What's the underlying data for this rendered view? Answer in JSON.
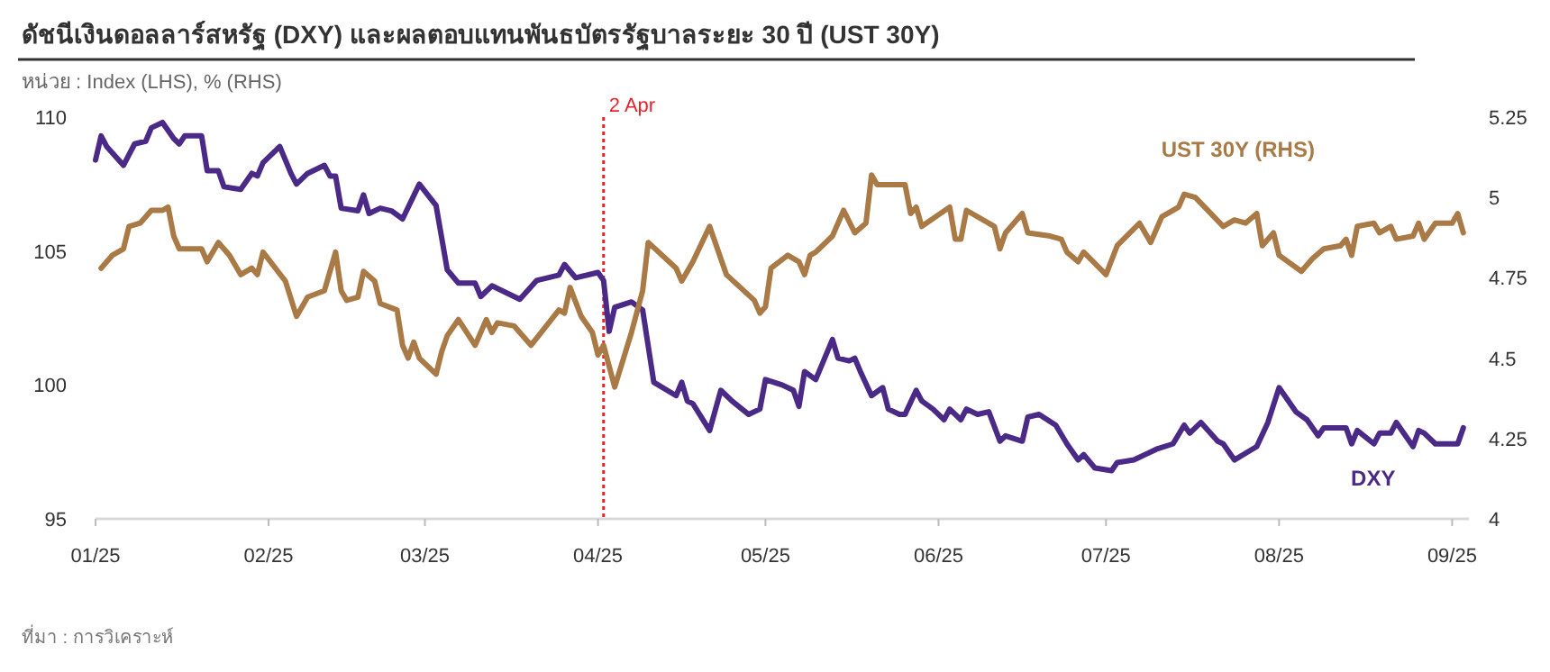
{
  "chart_data": {
    "type": "line",
    "title": "ดัชนีเงินดอลลาร์สหรัฐ (DXY) และผลตอบแทนพันธบัตรรัฐบาลระยะ  30 ปี (UST 30Y)",
    "subtitle": "หน่วย : Index (LHS), % (RHS)",
    "annotations": [
      "ที่มา : การวิเคราะห์"
    ],
    "xlim": [
      "2025-01-01",
      "2025-09-04"
    ],
    "xticks": [
      {
        "value": "2025-01-01",
        "label": "01/25"
      },
      {
        "value": "2025-02-01",
        "label": "02/25"
      },
      {
        "value": "2025-03-01",
        "label": "03/25"
      },
      {
        "value": "2025-04-01",
        "label": "04/25"
      },
      {
        "value": "2025-05-01",
        "label": "05/25"
      },
      {
        "value": "2025-06-01",
        "label": "06/25"
      },
      {
        "value": "2025-07-01",
        "label": "07/25"
      },
      {
        "value": "2025-08-01",
        "label": "08/25"
      },
      {
        "value": "2025-09-01",
        "label": "09/25"
      }
    ],
    "ylim": [
      95,
      110
    ],
    "yticks": [
      95,
      100,
      105,
      110
    ],
    "y2lim": [
      4,
      5.25
    ],
    "y2ticks": [
      4,
      4.25,
      4.5,
      4.75,
      5,
      5.25
    ],
    "grid": false,
    "legend": false,
    "line_style": "solid",
    "marker": "none",
    "ref_lines": [
      {
        "axis": "x",
        "value": "2025-04-02",
        "label": "2 Apr",
        "color": "#e8242c",
        "line_style": "dotted"
      }
    ],
    "series": [
      {
        "name": "DXY",
        "color": "#4a2a86",
        "x": [
          "2025-01-01",
          "2025-01-02",
          "2025-01-03",
          "2025-01-06",
          "2025-01-08",
          "2025-01-10",
          "2025-01-11",
          "2025-01-13",
          "2025-01-15",
          "2025-01-16",
          "2025-01-17",
          "2025-01-20",
          "2025-01-21",
          "2025-01-23",
          "2025-01-24",
          "2025-01-27",
          "2025-01-29",
          "2025-01-30",
          "2025-01-31",
          "2025-02-03",
          "2025-02-05",
          "2025-02-06",
          "2025-02-08",
          "2025-02-11",
          "2025-02-12",
          "2025-02-13",
          "2025-02-14",
          "2025-02-17",
          "2025-02-18",
          "2025-02-19",
          "2025-02-21",
          "2025-02-23",
          "2025-02-25",
          "2025-02-28",
          "2025-03-03",
          "2025-03-05",
          "2025-03-07",
          "2025-03-10",
          "2025-03-11",
          "2025-03-13",
          "2025-03-18",
          "2025-03-21",
          "2025-03-25",
          "2025-03-26",
          "2025-03-28",
          "2025-04-01",
          "2025-04-02",
          "2025-04-03",
          "2025-04-04",
          "2025-04-07",
          "2025-04-09",
          "2025-04-11",
          "2025-04-15",
          "2025-04-16",
          "2025-04-17",
          "2025-04-18",
          "2025-04-21",
          "2025-04-23",
          "2025-04-25",
          "2025-04-28",
          "2025-04-30",
          "2025-05-01",
          "2025-05-04",
          "2025-05-06",
          "2025-05-07",
          "2025-05-08",
          "2025-05-10",
          "2025-05-13",
          "2025-05-14",
          "2025-05-16",
          "2025-05-17",
          "2025-05-18",
          "2025-05-20",
          "2025-05-22",
          "2025-05-23",
          "2025-05-25",
          "2025-05-26",
          "2025-05-28",
          "2025-05-29",
          "2025-05-31",
          "2025-06-02",
          "2025-06-03",
          "2025-06-05",
          "2025-06-06",
          "2025-06-08",
          "2025-06-10",
          "2025-06-12",
          "2025-06-13",
          "2025-06-16",
          "2025-06-17",
          "2025-06-19",
          "2025-06-22",
          "2025-06-24",
          "2025-06-26",
          "2025-06-27",
          "2025-06-29",
          "2025-07-02",
          "2025-07-03",
          "2025-07-06",
          "2025-07-10",
          "2025-07-13",
          "2025-07-15",
          "2025-07-16",
          "2025-07-18",
          "2025-07-21",
          "2025-07-22",
          "2025-07-24",
          "2025-07-28",
          "2025-07-30",
          "2025-08-01",
          "2025-08-04",
          "2025-08-06",
          "2025-08-08",
          "2025-08-09",
          "2025-08-13",
          "2025-08-14",
          "2025-08-15",
          "2025-08-18",
          "2025-08-19",
          "2025-08-21",
          "2025-08-22",
          "2025-08-25",
          "2025-08-26",
          "2025-08-27",
          "2025-08-29",
          "2025-09-02",
          "2025-09-03"
        ],
        "values": [
          108.4,
          109.3,
          108.9,
          108.2,
          109.0,
          109.1,
          109.6,
          109.8,
          109.2,
          109.0,
          109.3,
          109.3,
          108.0,
          108.0,
          107.4,
          107.3,
          107.9,
          107.8,
          108.3,
          108.9,
          107.9,
          107.5,
          107.9,
          108.2,
          107.8,
          107.8,
          106.6,
          106.5,
          107.1,
          106.4,
          106.6,
          106.5,
          106.2,
          107.5,
          106.7,
          104.3,
          103.8,
          103.8,
          103.3,
          103.7,
          103.2,
          103.9,
          104.1,
          104.5,
          104.0,
          104.2,
          103.9,
          102.0,
          102.9,
          103.1,
          102.8,
          100.1,
          99.6,
          100.1,
          99.4,
          99.3,
          98.3,
          99.8,
          99.4,
          98.9,
          99.1,
          100.2,
          100.0,
          99.8,
          99.2,
          100.5,
          100.2,
          101.7,
          101.0,
          100.9,
          101.0,
          100.5,
          99.6,
          99.9,
          99.1,
          98.9,
          98.9,
          99.8,
          99.4,
          99.1,
          98.7,
          99.1,
          98.7,
          99.1,
          98.9,
          99.0,
          97.9,
          98.1,
          97.9,
          98.8,
          98.9,
          98.5,
          97.8,
          97.2,
          97.4,
          96.9,
          96.8,
          97.1,
          97.2,
          97.6,
          97.8,
          98.5,
          98.2,
          98.6,
          97.9,
          97.8,
          97.2,
          97.7,
          98.6,
          99.9,
          99.0,
          98.7,
          98.1,
          98.4,
          98.4,
          97.8,
          98.3,
          97.8,
          98.2,
          98.2,
          98.6,
          97.7,
          98.3,
          98.2,
          97.8,
          97.8,
          98.4
        ]
      },
      {
        "name": "UST 30Y (RHS)",
        "color": "#a97a46",
        "axis": "y2",
        "x": [
          "2025-01-02",
          "2025-01-04",
          "2025-01-06",
          "2025-01-07",
          "2025-01-09",
          "2025-01-11",
          "2025-01-13",
          "2025-01-14",
          "2025-01-15",
          "2025-01-16",
          "2025-01-20",
          "2025-01-21",
          "2025-01-23",
          "2025-01-25",
          "2025-01-27",
          "2025-01-29",
          "2025-01-30",
          "2025-01-31",
          "2025-02-04",
          "2025-02-06",
          "2025-02-08",
          "2025-02-11",
          "2025-02-13",
          "2025-02-14",
          "2025-02-15",
          "2025-02-17",
          "2025-02-18",
          "2025-02-20",
          "2025-02-21",
          "2025-02-24",
          "2025-02-25",
          "2025-02-26",
          "2025-02-27",
          "2025-02-28",
          "2025-03-03",
          "2025-03-04",
          "2025-03-05",
          "2025-03-07",
          "2025-03-10",
          "2025-03-12",
          "2025-03-13",
          "2025-03-14",
          "2025-03-17",
          "2025-03-20",
          "2025-03-25",
          "2025-03-26",
          "2025-03-27",
          "2025-03-29",
          "2025-03-31",
          "2025-04-01",
          "2025-04-02",
          "2025-04-04",
          "2025-04-07",
          "2025-04-09",
          "2025-04-10",
          "2025-04-15",
          "2025-04-16",
          "2025-04-18",
          "2025-04-21",
          "2025-04-24",
          "2025-04-29",
          "2025-04-30",
          "2025-05-01",
          "2025-05-02",
          "2025-05-05",
          "2025-05-07",
          "2025-05-08",
          "2025-05-09",
          "2025-05-10",
          "2025-05-13",
          "2025-05-15",
          "2025-05-17",
          "2025-05-19",
          "2025-05-20",
          "2025-05-21",
          "2025-05-26",
          "2025-05-27",
          "2025-05-28",
          "2025-05-29",
          "2025-06-03",
          "2025-06-04",
          "2025-06-05",
          "2025-06-06",
          "2025-06-11",
          "2025-06-12",
          "2025-06-13",
          "2025-06-16",
          "2025-06-17",
          "2025-06-21",
          "2025-06-23",
          "2025-06-24",
          "2025-06-26",
          "2025-06-27",
          "2025-07-01",
          "2025-07-03",
          "2025-07-07",
          "2025-07-09",
          "2025-07-11",
          "2025-07-14",
          "2025-07-15",
          "2025-07-17",
          "2025-07-22",
          "2025-07-24",
          "2025-07-26",
          "2025-07-28",
          "2025-07-29",
          "2025-07-31",
          "2025-08-01",
          "2025-08-05",
          "2025-08-07",
          "2025-08-09",
          "2025-08-12",
          "2025-08-13",
          "2025-08-14",
          "2025-08-15",
          "2025-08-18",
          "2025-08-19",
          "2025-08-21",
          "2025-08-22",
          "2025-08-25",
          "2025-08-26",
          "2025-08-27",
          "2025-08-29",
          "2025-09-01",
          "2025-09-02",
          "2025-09-03"
        ],
        "values": [
          4.78,
          4.82,
          4.84,
          4.91,
          4.92,
          4.96,
          4.96,
          4.97,
          4.88,
          4.84,
          4.84,
          4.8,
          4.86,
          4.82,
          4.76,
          4.78,
          4.76,
          4.83,
          4.74,
          4.63,
          4.69,
          4.71,
          4.83,
          4.71,
          4.68,
          4.69,
          4.77,
          4.74,
          4.67,
          4.65,
          4.54,
          4.5,
          4.55,
          4.5,
          4.45,
          4.52,
          4.57,
          4.62,
          4.54,
          4.62,
          4.58,
          4.61,
          4.6,
          4.54,
          4.65,
          4.64,
          4.72,
          4.63,
          4.58,
          4.51,
          4.54,
          4.41,
          4.58,
          4.71,
          4.86,
          4.78,
          4.74,
          4.8,
          4.91,
          4.76,
          4.68,
          4.64,
          4.66,
          4.78,
          4.82,
          4.8,
          4.76,
          4.82,
          4.83,
          4.88,
          4.96,
          4.89,
          4.92,
          5.07,
          5.04,
          5.04,
          4.95,
          4.97,
          4.91,
          4.97,
          4.87,
          4.87,
          4.96,
          4.91,
          4.84,
          4.89,
          4.95,
          4.89,
          4.88,
          4.87,
          4.83,
          4.8,
          4.83,
          4.76,
          4.85,
          4.92,
          4.86,
          4.94,
          4.97,
          5.01,
          5.0,
          4.91,
          4.93,
          4.92,
          4.95,
          4.85,
          4.89,
          4.82,
          4.77,
          4.81,
          4.84,
          4.85,
          4.87,
          4.82,
          4.91,
          4.92,
          4.89,
          4.91,
          4.87,
          4.88,
          4.92,
          4.87,
          4.92,
          4.92,
          4.95,
          4.89
        ]
      }
    ]
  }
}
